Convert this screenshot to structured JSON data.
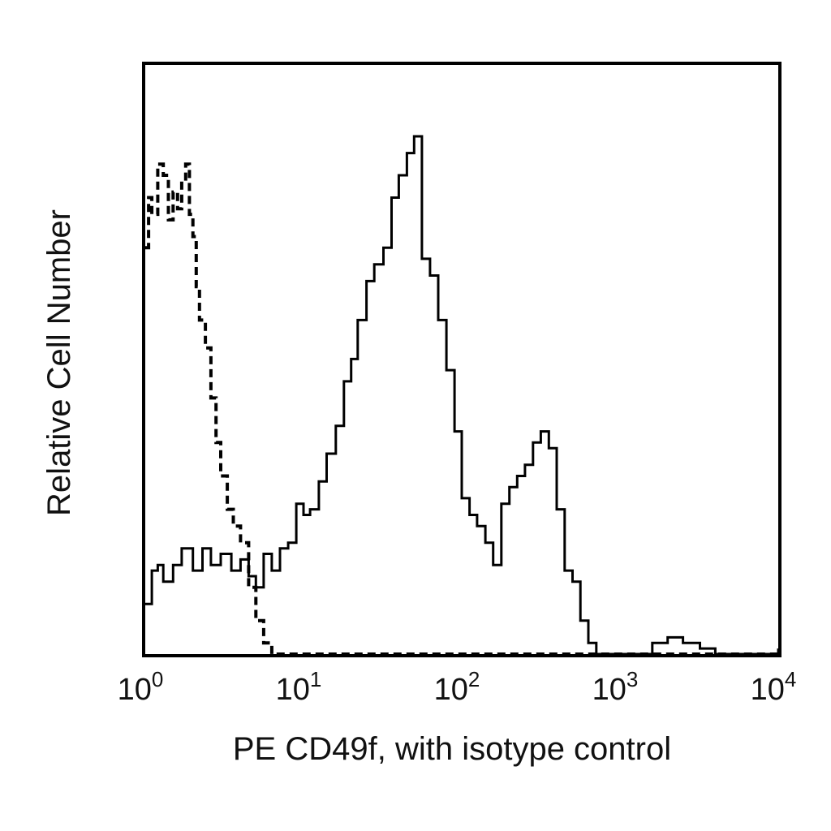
{
  "chart_data": {
    "type": "line",
    "xscale": "log",
    "xlim": [
      1,
      10000
    ],
    "ylim": [
      0,
      1
    ],
    "grid": false,
    "xlabel": "PE CD49f, with isotype control",
    "ylabel": "Relative Cell Number",
    "x_ticks": [
      {
        "value": 1,
        "base": "10",
        "exp": "0"
      },
      {
        "value": 10,
        "base": "10",
        "exp": "1"
      },
      {
        "value": 100,
        "base": "10",
        "exp": "2"
      },
      {
        "value": 1000,
        "base": "10",
        "exp": "3"
      },
      {
        "value": 10000,
        "base": "10",
        "exp": "4"
      }
    ],
    "series": [
      {
        "style": "solid",
        "color": "#000000",
        "x": [
          1.0,
          1.1,
          1.2,
          1.3,
          1.5,
          1.7,
          2.0,
          2.3,
          2.6,
          3.0,
          3.5,
          4.0,
          4.5,
          5.0,
          5.6,
          6.3,
          7.1,
          8.0,
          9.0,
          10,
          11,
          12.5,
          14,
          16,
          18,
          20,
          22,
          25,
          28,
          32,
          36,
          40,
          45,
          50,
          56,
          63,
          71,
          80,
          90,
          100,
          112,
          125,
          141,
          158,
          178,
          200,
          224,
          251,
          282,
          316,
          355,
          398,
          447,
          501,
          562,
          631,
          708,
          800,
          1000,
          1300,
          1600,
          2000,
          2500,
          3200,
          4000,
          5000,
          6300,
          8000,
          10000
        ],
        "y": [
          0.09,
          0.15,
          0.16,
          0.13,
          0.16,
          0.19,
          0.15,
          0.19,
          0.16,
          0.18,
          0.15,
          0.17,
          0.14,
          0.12,
          0.18,
          0.15,
          0.19,
          0.2,
          0.27,
          0.25,
          0.26,
          0.31,
          0.36,
          0.41,
          0.49,
          0.53,
          0.6,
          0.67,
          0.7,
          0.73,
          0.82,
          0.86,
          0.9,
          0.93,
          0.71,
          0.68,
          0.6,
          0.51,
          0.4,
          0.28,
          0.25,
          0.23,
          0.2,
          0.16,
          0.27,
          0.3,
          0.32,
          0.34,
          0.38,
          0.4,
          0.37,
          0.26,
          0.15,
          0.13,
          0.06,
          0.02,
          0.0,
          0.0,
          0.0,
          0.0,
          0.02,
          0.03,
          0.02,
          0.01,
          0.0,
          0.0,
          0.0,
          0.0,
          0.01
        ]
      },
      {
        "style": "dashed",
        "color": "#000000",
        "x": [
          1.0,
          1.05,
          1.1,
          1.2,
          1.3,
          1.4,
          1.5,
          1.6,
          1.7,
          1.8,
          1.9,
          2.0,
          2.1,
          2.2,
          2.4,
          2.6,
          2.8,
          3.0,
          3.3,
          3.6,
          4.0,
          4.5,
          5.0,
          5.6,
          6.3,
          7.0,
          8.0,
          10,
          20,
          40,
          100,
          1000,
          10000
        ],
        "y": [
          0.73,
          0.82,
          0.79,
          0.88,
          0.86,
          0.78,
          0.83,
          0.8,
          0.85,
          0.88,
          0.79,
          0.75,
          0.66,
          0.6,
          0.55,
          0.46,
          0.38,
          0.32,
          0.26,
          0.23,
          0.2,
          0.12,
          0.06,
          0.02,
          0.0,
          0.0,
          0.0,
          0.0,
          0.0,
          0.0,
          0.0,
          0.0,
          0.0
        ]
      }
    ]
  }
}
